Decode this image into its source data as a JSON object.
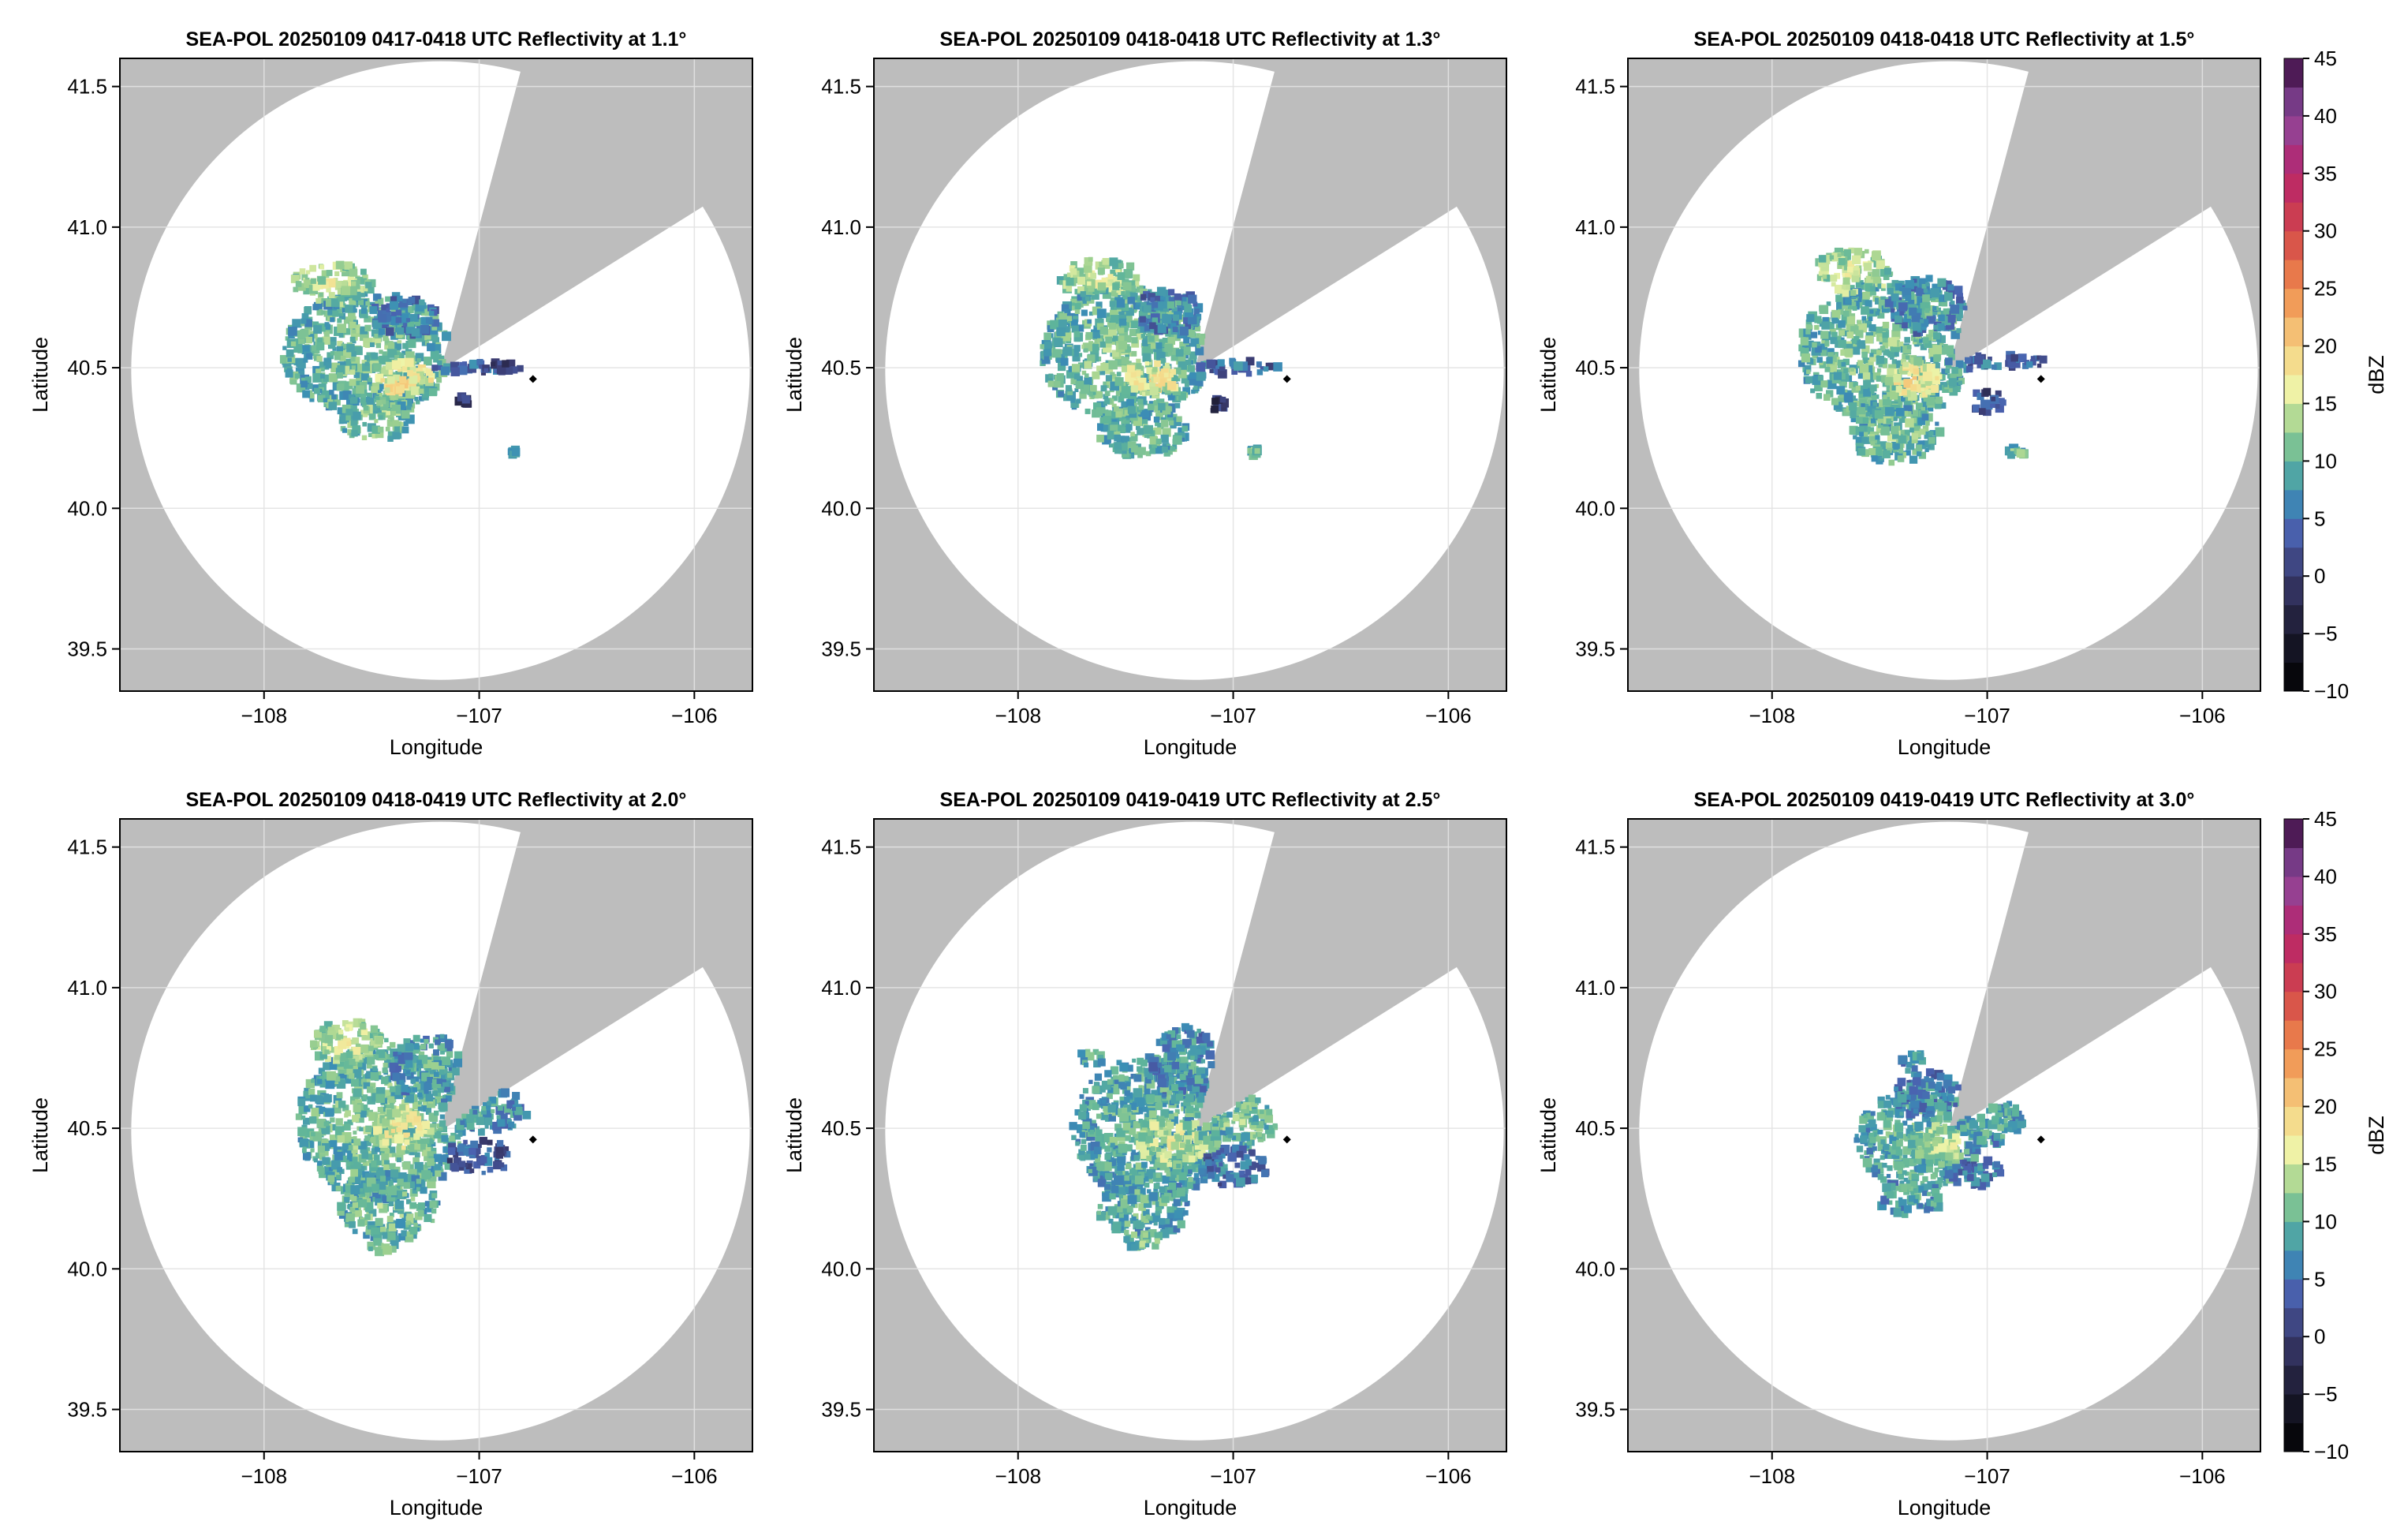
{
  "figure": {
    "colorbar_label": "dBZ",
    "colorbar_ticks": [
      -10,
      -5,
      0,
      5,
      10,
      15,
      20,
      25,
      30,
      35,
      40,
      45
    ],
    "colorbar_range": [
      -10,
      45
    ],
    "colormap_stops": [
      {
        "v": -10,
        "color": "#000000"
      },
      {
        "v": -5,
        "color": "#1b1a2e"
      },
      {
        "v": 0,
        "color": "#3a3a6e"
      },
      {
        "v": 4,
        "color": "#4a62b0"
      },
      {
        "v": 7,
        "color": "#3b8fb5"
      },
      {
        "v": 10,
        "color": "#5fb59a"
      },
      {
        "v": 13,
        "color": "#9fd18f"
      },
      {
        "v": 16,
        "color": "#eef4a8"
      },
      {
        "v": 20,
        "color": "#f6d181"
      },
      {
        "v": 25,
        "color": "#ef8a4b"
      },
      {
        "v": 30,
        "color": "#d1454a"
      },
      {
        "v": 35,
        "color": "#b8236b"
      },
      {
        "v": 40,
        "color": "#8a4a9e"
      },
      {
        "v": 45,
        "color": "#3a0b3e"
      }
    ],
    "colors": {
      "no_coverage": "#bdbdbd",
      "radar_range": "#ffffff",
      "grid": "#e3e3e3",
      "marker": "#000000"
    }
  },
  "chart_data": [
    {
      "type": "heatmap",
      "title": "SEA-POL 20250109 0417-0418 UTC Reflectivity at 1.1°",
      "xlabel": "Longitude",
      "ylabel": "Latitude",
      "xlim": [
        -108.67,
        -105.73
      ],
      "ylim": [
        39.35,
        41.6
      ],
      "xticks": [
        -108,
        -107,
        -106
      ],
      "yticks": [
        39.5,
        40.0,
        40.5,
        41.0,
        41.5
      ],
      "xtick_labels": [
        "−108",
        "−107",
        "−106"
      ],
      "ytick_labels": [
        "39.5",
        "40.0",
        "40.5",
        "41.0",
        "41.5"
      ],
      "grid": true,
      "colorbar": false,
      "radar_center": [
        -107.18,
        40.49
      ],
      "radar_range_deg_lat": 1.1,
      "blocked_sector_deg": [
        15,
        58
      ],
      "marker": [
        -106.75,
        40.46
      ],
      "echoes": [
        {
          "lon": -107.52,
          "lat": 40.55,
          "rx": 0.3,
          "ry": 0.22,
          "dbz": 12
        },
        {
          "lon": -107.68,
          "lat": 40.8,
          "rx": 0.14,
          "ry": 0.07,
          "dbz": 15
        },
        {
          "lon": -107.35,
          "lat": 40.46,
          "rx": 0.1,
          "ry": 0.06,
          "dbz": 19
        },
        {
          "lon": -107.35,
          "lat": 40.68,
          "rx": 0.12,
          "ry": 0.07,
          "dbz": 8
        },
        {
          "lon": -107.48,
          "lat": 40.32,
          "rx": 0.14,
          "ry": 0.08,
          "dbz": 13
        },
        {
          "lon": -107.0,
          "lat": 40.5,
          "rx": 0.16,
          "ry": 0.02,
          "dbz": 6
        },
        {
          "lon": -106.9,
          "lat": 40.5,
          "rx": 0.08,
          "ry": 0.015,
          "dbz": 3
        },
        {
          "lon": -107.07,
          "lat": 40.38,
          "rx": 0.02,
          "ry": 0.02,
          "dbz": 2
        },
        {
          "lon": -106.84,
          "lat": 40.2,
          "rx": 0.01,
          "ry": 0.01,
          "dbz": 12
        }
      ]
    },
    {
      "type": "heatmap",
      "title": "SEA-POL 20250109 0418-0418 UTC Reflectivity at 1.3°",
      "xlabel": "Longitude",
      "ylabel": "Latitude",
      "xlim": [
        -108.67,
        -105.73
      ],
      "ylim": [
        39.35,
        41.6
      ],
      "xticks": [
        -108,
        -107,
        -106
      ],
      "yticks": [
        39.5,
        40.0,
        40.5,
        41.0,
        41.5
      ],
      "xtick_labels": [
        "−108",
        "−107",
        "−106"
      ],
      "ytick_labels": [
        "39.5",
        "40.0",
        "40.5",
        "41.0",
        "41.5"
      ],
      "grid": true,
      "colorbar": false,
      "radar_center": [
        -107.18,
        40.49
      ],
      "radar_range_deg_lat": 1.1,
      "blocked_sector_deg": [
        15,
        58
      ],
      "marker": [
        -106.75,
        40.46
      ],
      "echoes": [
        {
          "lon": -107.5,
          "lat": 40.55,
          "rx": 0.3,
          "ry": 0.24,
          "dbz": 12
        },
        {
          "lon": -107.62,
          "lat": 40.82,
          "rx": 0.14,
          "ry": 0.07,
          "dbz": 15
        },
        {
          "lon": -107.38,
          "lat": 40.46,
          "rx": 0.1,
          "ry": 0.06,
          "dbz": 18
        },
        {
          "lon": -107.3,
          "lat": 40.7,
          "rx": 0.12,
          "ry": 0.08,
          "dbz": 8
        },
        {
          "lon": -107.42,
          "lat": 40.28,
          "rx": 0.16,
          "ry": 0.1,
          "dbz": 12
        },
        {
          "lon": -106.98,
          "lat": 40.5,
          "rx": 0.16,
          "ry": 0.025,
          "dbz": 6
        },
        {
          "lon": -107.05,
          "lat": 40.36,
          "rx": 0.04,
          "ry": 0.03,
          "dbz": 2
        },
        {
          "lon": -106.9,
          "lat": 40.2,
          "rx": 0.02,
          "ry": 0.015,
          "dbz": 12
        }
      ]
    },
    {
      "type": "heatmap",
      "title": "SEA-POL 20250109 0418-0418 UTC Reflectivity at 1.5°",
      "xlabel": "Longitude",
      "ylabel": "Latitude",
      "xlim": [
        -108.67,
        -105.73
      ],
      "ylim": [
        39.35,
        41.6
      ],
      "xticks": [
        -108,
        -107,
        -106
      ],
      "yticks": [
        39.5,
        40.0,
        40.5,
        41.0,
        41.5
      ],
      "xtick_labels": [
        "−108",
        "−107",
        "−106"
      ],
      "ytick_labels": [
        "39.5",
        "40.0",
        "40.5",
        "41.0",
        "41.5"
      ],
      "grid": true,
      "colorbar": true,
      "radar_center": [
        -107.18,
        40.49
      ],
      "radar_range_deg_lat": 1.1,
      "blocked_sector_deg": [
        15,
        58
      ],
      "marker": [
        -106.75,
        40.46
      ],
      "echoes": [
        {
          "lon": -107.48,
          "lat": 40.55,
          "rx": 0.3,
          "ry": 0.26,
          "dbz": 12
        },
        {
          "lon": -107.62,
          "lat": 40.84,
          "rx": 0.14,
          "ry": 0.08,
          "dbz": 15
        },
        {
          "lon": -107.35,
          "lat": 40.46,
          "rx": 0.1,
          "ry": 0.07,
          "dbz": 18
        },
        {
          "lon": -107.28,
          "lat": 40.72,
          "rx": 0.14,
          "ry": 0.1,
          "dbz": 9
        },
        {
          "lon": -107.42,
          "lat": 40.26,
          "rx": 0.16,
          "ry": 0.1,
          "dbz": 12
        },
        {
          "lon": -106.96,
          "lat": 40.52,
          "rx": 0.18,
          "ry": 0.03,
          "dbz": 6
        },
        {
          "lon": -107.0,
          "lat": 40.38,
          "rx": 0.06,
          "ry": 0.04,
          "dbz": 4
        },
        {
          "lon": -106.86,
          "lat": 40.2,
          "rx": 0.03,
          "ry": 0.015,
          "dbz": 12
        }
      ]
    },
    {
      "type": "heatmap",
      "title": "SEA-POL 20250109 0418-0419 UTC Reflectivity at 2.0°",
      "xlabel": "Longitude",
      "ylabel": "Latitude",
      "xlim": [
        -108.67,
        -105.73
      ],
      "ylim": [
        39.35,
        41.6
      ],
      "xticks": [
        -108,
        -107,
        -106
      ],
      "yticks": [
        39.5,
        40.0,
        40.5,
        41.0,
        41.5
      ],
      "xtick_labels": [
        "−108",
        "−107",
        "−106"
      ],
      "ytick_labels": [
        "39.5",
        "40.0",
        "40.5",
        "41.0",
        "41.5"
      ],
      "grid": true,
      "colorbar": false,
      "radar_center": [
        -107.18,
        40.49
      ],
      "radar_range_deg_lat": 1.1,
      "blocked_sector_deg": [
        15,
        58
      ],
      "marker": [
        -106.75,
        40.46
      ],
      "echoes": [
        {
          "lon": -107.45,
          "lat": 40.52,
          "rx": 0.3,
          "ry": 0.28,
          "dbz": 12
        },
        {
          "lon": -107.6,
          "lat": 40.8,
          "rx": 0.14,
          "ry": 0.08,
          "dbz": 15
        },
        {
          "lon": -107.35,
          "lat": 40.5,
          "rx": 0.1,
          "ry": 0.08,
          "dbz": 17
        },
        {
          "lon": -107.22,
          "lat": 40.72,
          "rx": 0.14,
          "ry": 0.12,
          "dbz": 10
        },
        {
          "lon": -107.42,
          "lat": 40.22,
          "rx": 0.18,
          "ry": 0.12,
          "dbz": 12
        },
        {
          "lon": -106.98,
          "lat": 40.56,
          "rx": 0.16,
          "ry": 0.08,
          "dbz": 9
        },
        {
          "lon": -107.0,
          "lat": 40.4,
          "rx": 0.12,
          "ry": 0.06,
          "dbz": 5
        },
        {
          "lon": -107.45,
          "lat": 40.08,
          "rx": 0.05,
          "ry": 0.02,
          "dbz": 13
        }
      ]
    },
    {
      "type": "heatmap",
      "title": "SEA-POL 20250109 0419-0419 UTC Reflectivity at 2.5°",
      "xlabel": "Longitude",
      "ylabel": "Latitude",
      "xlim": [
        -108.67,
        -105.73
      ],
      "ylim": [
        39.35,
        41.6
      ],
      "xticks": [
        -108,
        -107,
        -106
      ],
      "yticks": [
        39.5,
        40.0,
        40.5,
        41.0,
        41.5
      ],
      "xtick_labels": [
        "−108",
        "−107",
        "−106"
      ],
      "ytick_labels": [
        "39.5",
        "40.0",
        "40.5",
        "41.0",
        "41.5"
      ],
      "grid": true,
      "colorbar": false,
      "radar_center": [
        -107.18,
        40.49
      ],
      "radar_range_deg_lat": 1.1,
      "blocked_sector_deg": [
        15,
        58
      ],
      "marker": [
        -106.75,
        40.46
      ],
      "echoes": [
        {
          "lon": -107.38,
          "lat": 40.5,
          "rx": 0.28,
          "ry": 0.26,
          "dbz": 11
        },
        {
          "lon": -107.28,
          "lat": 40.45,
          "rx": 0.12,
          "ry": 0.09,
          "dbz": 16
        },
        {
          "lon": -107.22,
          "lat": 40.72,
          "rx": 0.12,
          "ry": 0.14,
          "dbz": 9
        },
        {
          "lon": -107.42,
          "lat": 40.22,
          "rx": 0.16,
          "ry": 0.12,
          "dbz": 11
        },
        {
          "lon": -106.98,
          "lat": 40.52,
          "rx": 0.14,
          "ry": 0.1,
          "dbz": 12
        },
        {
          "lon": -107.0,
          "lat": 40.36,
          "rx": 0.12,
          "ry": 0.07,
          "dbz": 7
        },
        {
          "lon": -107.42,
          "lat": 40.1,
          "rx": 0.06,
          "ry": 0.03,
          "dbz": 13
        },
        {
          "lon": -107.65,
          "lat": 40.75,
          "rx": 0.05,
          "ry": 0.03,
          "dbz": 11
        }
      ]
    },
    {
      "type": "heatmap",
      "title": "SEA-POL 20250109 0419-0419 UTC Reflectivity at 3.0°",
      "xlabel": "Longitude",
      "ylabel": "Latitude",
      "xlim": [
        -108.67,
        -105.73
      ],
      "ylim": [
        39.35,
        41.6
      ],
      "xticks": [
        -108,
        -107,
        -106
      ],
      "yticks": [
        39.5,
        40.0,
        40.5,
        41.0,
        41.5
      ],
      "xtick_labels": [
        "−108",
        "−107",
        "−106"
      ],
      "ytick_labels": [
        "39.5",
        "40.0",
        "40.5",
        "41.0",
        "41.5"
      ],
      "grid": true,
      "colorbar": true,
      "radar_center": [
        -107.18,
        40.49
      ],
      "radar_range_deg_lat": 1.1,
      "blocked_sector_deg": [
        15,
        58
      ],
      "marker": [
        -106.75,
        40.46
      ],
      "echoes": [
        {
          "lon": -107.32,
          "lat": 40.46,
          "rx": 0.22,
          "ry": 0.18,
          "dbz": 11
        },
        {
          "lon": -107.22,
          "lat": 40.44,
          "rx": 0.1,
          "ry": 0.07,
          "dbz": 15
        },
        {
          "lon": -107.28,
          "lat": 40.62,
          "rx": 0.12,
          "ry": 0.08,
          "dbz": 8
        },
        {
          "lon": -106.98,
          "lat": 40.52,
          "rx": 0.12,
          "ry": 0.08,
          "dbz": 10
        },
        {
          "lon": -107.35,
          "lat": 40.25,
          "rx": 0.12,
          "ry": 0.06,
          "dbz": 10
        },
        {
          "lon": -107.05,
          "lat": 40.34,
          "rx": 0.1,
          "ry": 0.05,
          "dbz": 7
        },
        {
          "lon": -107.35,
          "lat": 40.74,
          "rx": 0.04,
          "ry": 0.04,
          "dbz": 9
        }
      ]
    }
  ]
}
